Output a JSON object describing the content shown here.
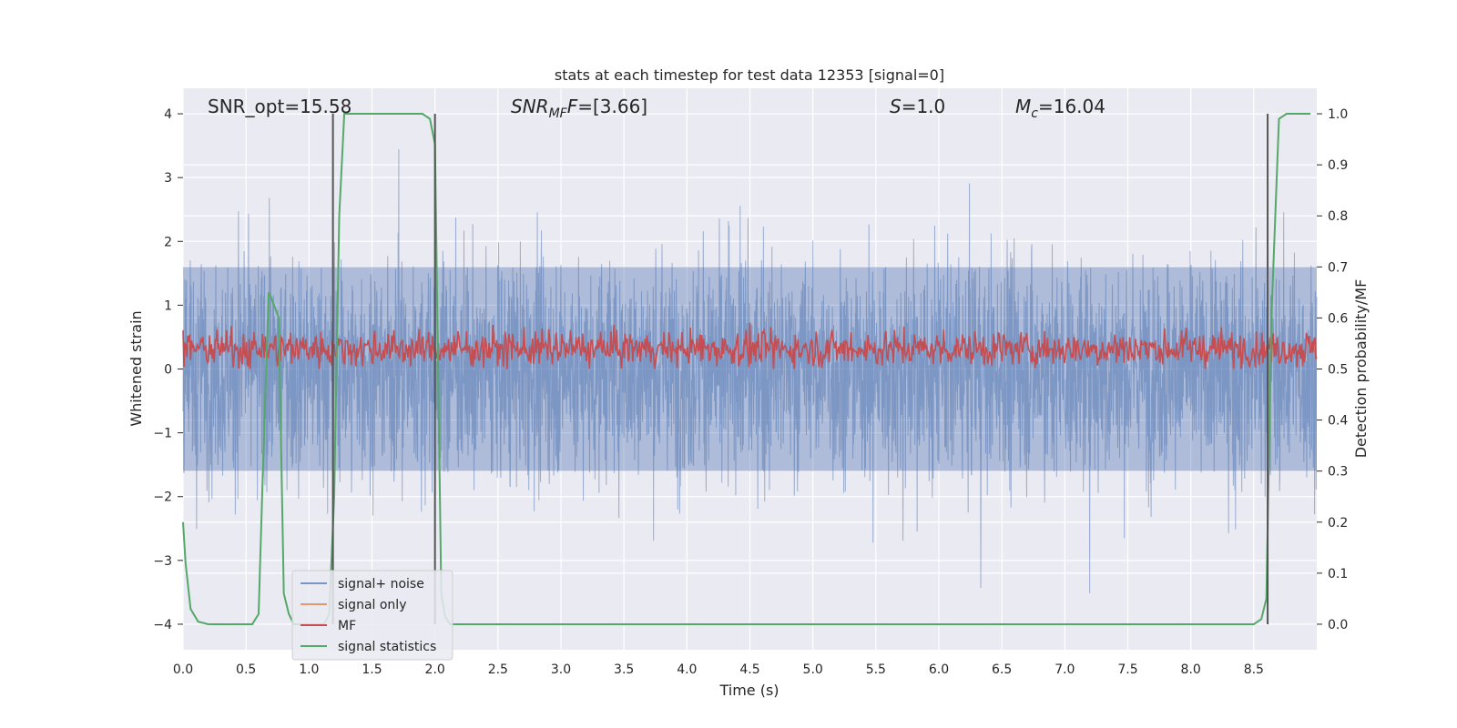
{
  "chart_data": {
    "type": "line",
    "title": "stats at each timestep for test data 12353 [signal=0]",
    "xlabel": "Time (s)",
    "ylabel": "Whitened strain",
    "y2label": "Detection probability/MF",
    "xlim": [
      0.0,
      9.0
    ],
    "ylim": [
      -4.4,
      4.4
    ],
    "y2lim": [
      -0.05,
      1.05
    ],
    "grid": true,
    "legend_position": "lower-left",
    "x_ticks": [
      "0.0",
      "0.5",
      "1.0",
      "1.5",
      "2.0",
      "2.5",
      "3.0",
      "3.5",
      "4.0",
      "4.5",
      "5.0",
      "5.5",
      "6.0",
      "6.5",
      "7.0",
      "7.5",
      "8.0",
      "8.5"
    ],
    "y_ticks": [
      "−4",
      "−3",
      "−2",
      "−1",
      "0",
      "1",
      "2",
      "3",
      "4"
    ],
    "y2_ticks": [
      "0.0",
      "0.1",
      "0.2",
      "0.3",
      "0.4",
      "0.5",
      "0.6",
      "0.7",
      "0.8",
      "0.9",
      "1.0"
    ],
    "annotations": {
      "snr_opt": "SNR_opt=15.58",
      "snr_mf_base": "SNR",
      "snr_mf_sub": "MF",
      "snr_mf_tail": "=[3.66]",
      "s_var": "S",
      "s_value": "=1.0",
      "mc_var": "M",
      "mc_sub": "c",
      "mc_value": "=16.04"
    },
    "series": [
      {
        "name": "signal+ noise",
        "color": "#4c72b0",
        "style": "noise band, amplitude about ±2.3 with spikes to ±4"
      },
      {
        "name": "signal only",
        "color": "#dd8452",
        "values": []
      },
      {
        "name": "MF",
        "color": "#c44e52",
        "style": "noisy trace around 0.3 on the strain axis"
      },
      {
        "name": "signal statistics",
        "color": "#55a868",
        "axis": "right",
        "x": [
          0.0,
          0.02,
          0.06,
          0.12,
          0.2,
          0.3,
          0.55,
          0.6,
          0.64,
          0.68,
          0.7,
          0.76,
          0.8,
          0.84,
          0.88,
          1.12,
          1.16,
          1.2,
          1.24,
          1.28,
          1.4,
          1.9,
          1.96,
          2.0,
          2.05,
          2.08,
          2.12,
          2.2,
          8.5,
          8.56,
          8.6,
          8.64,
          8.7,
          8.76,
          8.8,
          8.95
        ],
        "values": [
          0.2,
          0.12,
          0.03,
          0.005,
          0.0,
          0.0,
          0.0,
          0.02,
          0.35,
          0.65,
          0.64,
          0.6,
          0.06,
          0.02,
          0.0,
          0.0,
          0.02,
          0.25,
          0.8,
          1.0,
          1.0,
          1.0,
          0.99,
          0.94,
          0.06,
          0.015,
          0.0,
          0.0,
          0.0,
          0.01,
          0.05,
          0.6,
          0.99,
          1.0,
          1.0,
          1.0
        ]
      }
    ],
    "vertical_lines_x": [
      1.19,
      2.0,
      8.61
    ],
    "colors": {
      "plot_bg": "#eaeaf2",
      "grid": "#ffffff",
      "vline": "#555555"
    }
  }
}
